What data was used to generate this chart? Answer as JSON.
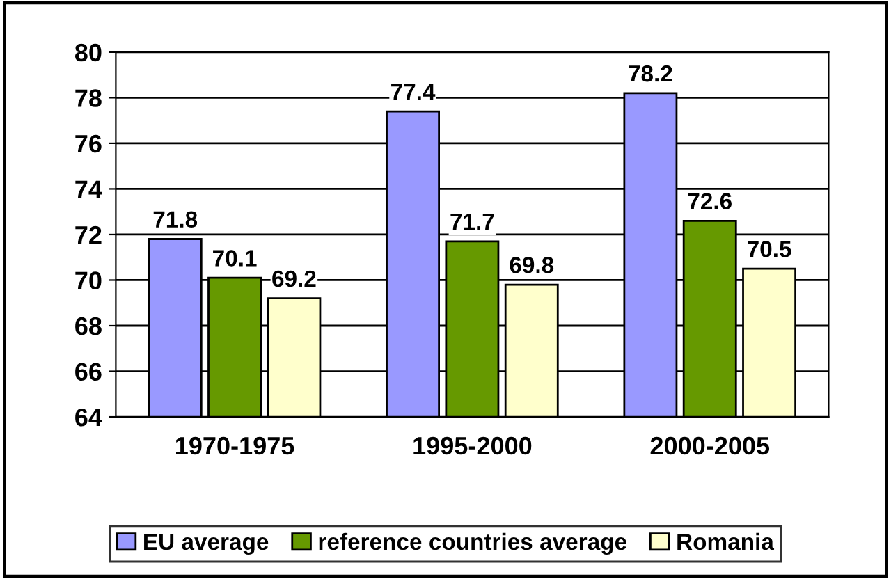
{
  "chart_data": {
    "type": "bar",
    "categories": [
      "1970-1975",
      "1995-2000",
      "2000-2005"
    ],
    "series": [
      {
        "name": "EU average",
        "color": "#9999ff",
        "values": [
          71.8,
          77.4,
          78.2
        ]
      },
      {
        "name": "reference countries average",
        "color": "#669900",
        "values": [
          70.1,
          71.7,
          72.6
        ]
      },
      {
        "name": "Romania",
        "color": "#ffffcc",
        "values": [
          69.2,
          69.8,
          70.5
        ]
      }
    ],
    "ylim": [
      64,
      80
    ],
    "yticks": [
      64,
      66,
      68,
      70,
      72,
      74,
      76,
      78,
      80
    ],
    "grid": "y",
    "legend": "bottom",
    "data_labels": true
  }
}
